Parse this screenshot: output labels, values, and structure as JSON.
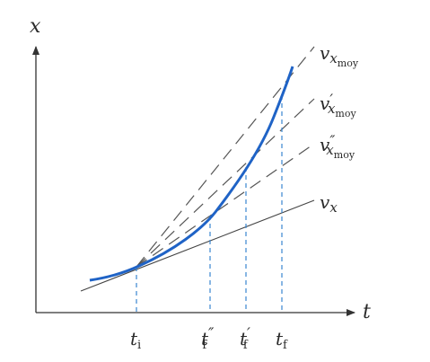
{
  "axes": {
    "y_label": "x",
    "x_label": "t"
  },
  "ticks": {
    "ti": {
      "main": "t",
      "sub": "i",
      "prime": ""
    },
    "tf2": {
      "main": "t",
      "sub": "f",
      "prime": "″"
    },
    "tf1": {
      "main": "t",
      "sub": "f",
      "prime": "′"
    },
    "tf": {
      "main": "t",
      "sub": "f",
      "prime": ""
    }
  },
  "lines": {
    "vxmoy": {
      "main": "v",
      "sub": "x",
      "subsub": "moy",
      "prime": ""
    },
    "vxmoy1": {
      "main": "v",
      "sub": "x",
      "subsub": "moy",
      "prime": "′"
    },
    "vxmoy2": {
      "main": "v",
      "sub": "x",
      "subsub": "moy",
      "prime": "″"
    },
    "vx": {
      "main": "v",
      "sub": "x"
    }
  },
  "colors": {
    "curve": "#1f63c6",
    "dashed_blue": "#3a86d0",
    "secant": "#555555",
    "tangent": "#444444",
    "axis": "#333333"
  }
}
